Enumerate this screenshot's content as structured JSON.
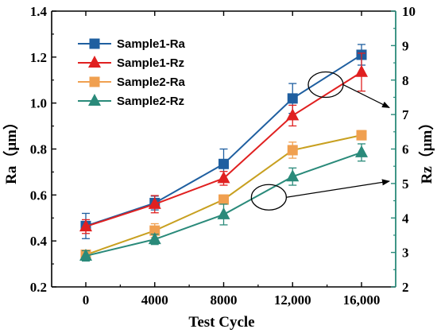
{
  "chart_data": {
    "type": "line",
    "xlabel": "Test Cycle",
    "ylabel": "Ra（μm）",
    "y2label": "Rz（μm）",
    "categories": [
      "0",
      "4000",
      "8000",
      "12,000",
      "16,000"
    ],
    "ylim": [
      0.2,
      1.4
    ],
    "yticks": [
      "0.2",
      "0.4",
      "0.6",
      "0.8",
      "1.0",
      "1.2",
      "1.4"
    ],
    "y2lim": [
      2,
      10
    ],
    "y2ticks": [
      "2",
      "3",
      "4",
      "5",
      "6",
      "7",
      "8",
      "9",
      "10"
    ],
    "grid": false,
    "legend_position": "top-left",
    "series": [
      {
        "name": "Sample1-Ra",
        "axis": "left",
        "marker": "square",
        "color": "#1f5fa0",
        "values": [
          0.465,
          0.565,
          0.735,
          1.02,
          1.21
        ],
        "errors": [
          0.055,
          0.03,
          0.065,
          0.065,
          0.045
        ]
      },
      {
        "name": "Sample1-Rz",
        "axis": "right",
        "marker": "triangle",
        "color": "#e02020",
        "values": [
          3.75,
          4.4,
          5.15,
          6.97,
          8.23
        ],
        "errors": [
          0.2,
          0.25,
          0.2,
          0.3,
          0.55
        ]
      },
      {
        "name": "Sample2-Ra",
        "axis": "left",
        "marker": "square",
        "color": "#f0a050",
        "values": [
          0.34,
          0.445,
          0.58,
          0.795,
          0.86
        ],
        "errors": [
          0.015,
          0.03,
          0.02,
          0.035,
          0.02
        ]
      },
      {
        "name": "Sample2-Rz",
        "axis": "right",
        "marker": "triangle",
        "color": "#2a8a7a",
        "values": [
          2.9,
          3.38,
          4.1,
          5.2,
          5.9
        ],
        "errors": [
          0.15,
          0.15,
          0.3,
          0.25,
          0.25
        ]
      }
    ],
    "series_line_colors": {
      "Sample2-Ra": "#c8a020"
    },
    "annotations": [
      {
        "type": "ellipse-arrow",
        "target_axis": "right",
        "x": [
          13000,
          16500
        ],
        "y": [
          1.08,
          0.98
        ]
      },
      {
        "type": "ellipse-arrow",
        "target_axis": "right",
        "x": [
          9700,
          16500
        ],
        "y": [
          0.59,
          0.66
        ]
      }
    ]
  }
}
